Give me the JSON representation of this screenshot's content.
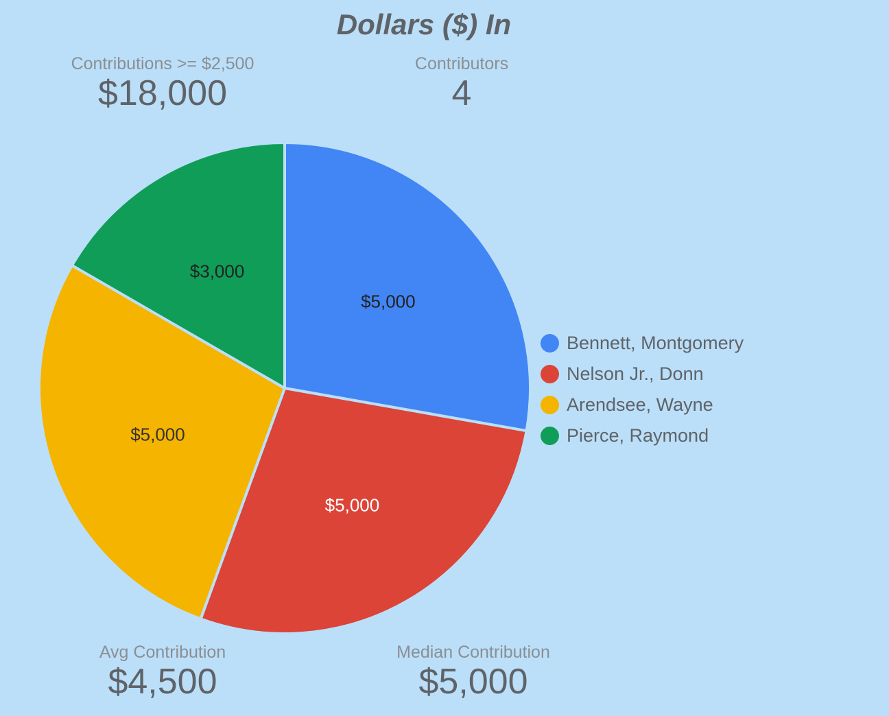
{
  "chart_data": {
    "type": "pie",
    "title": "Dollars ($) In",
    "categories": [
      "Bennett, Montgomery",
      "Nelson Jr., Donn",
      "Arendsee, Wayne",
      "Pierce, Raymond"
    ],
    "values": [
      5000,
      5000,
      5000,
      3000
    ],
    "data_labels": [
      "$5,000",
      "$5,000",
      "$5,000",
      "$3,000"
    ],
    "colors": [
      "#4285f4",
      "#db4437",
      "#f4b400",
      "#0f9d58"
    ],
    "label_colors": [
      "#222222",
      "#ffffff",
      "#333333",
      "#222222"
    ],
    "legend_position": "right"
  },
  "stats": {
    "contributions_ge": {
      "label": "Contributions >= $2,500",
      "value": "$18,000"
    },
    "contributors": {
      "label": "Contributors",
      "value": "4"
    },
    "avg": {
      "label": "Avg Contribution",
      "value": "$4,500"
    },
    "median": {
      "label": "Median Contribution",
      "value": "$5,000"
    }
  }
}
